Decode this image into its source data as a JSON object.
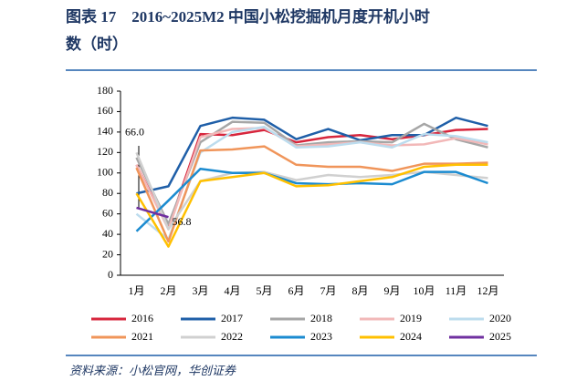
{
  "chart_data": {
    "type": "line",
    "title_lines": [
      "图表 17　2016~2025M2 中国小松挖掘机月度开机小时",
      "数（时）"
    ],
    "source": "资料来源：小松官网，华创证券",
    "categories": [
      "1月",
      "2月",
      "3月",
      "4月",
      "5月",
      "6月",
      "7月",
      "8月",
      "9月",
      "10月",
      "11月",
      "12月"
    ],
    "ylim": [
      0,
      180
    ],
    "yticks": [
      0,
      20,
      40,
      60,
      80,
      100,
      120,
      140,
      160,
      180
    ],
    "series": [
      {
        "name": "2016",
        "color": "#d7263d",
        "values": [
          108,
          47,
          138,
          137,
          142,
          130,
          135,
          137,
          133,
          137,
          142,
          143
        ]
      },
      {
        "name": "2017",
        "color": "#1f5fa8",
        "values": [
          80,
          87,
          146,
          154,
          152,
          133,
          143,
          132,
          137,
          137,
          154,
          146
        ]
      },
      {
        "name": "2018",
        "color": "#a6a6a6",
        "values": [
          115,
          50,
          130,
          150,
          149,
          127,
          130,
          131,
          130,
          148,
          133,
          125
        ]
      },
      {
        "name": "2019",
        "color": "#f2b8b8",
        "values": [
          108,
          45,
          135,
          143,
          144,
          126,
          128,
          130,
          127,
          128,
          134,
          128
        ]
      },
      {
        "name": "2020",
        "color": "#bcdcee",
        "values": [
          60,
          35,
          120,
          140,
          145,
          125,
          126,
          130,
          125,
          138,
          136,
          130
        ]
      },
      {
        "name": "2021",
        "color": "#f0955a",
        "values": [
          105,
          33,
          122,
          123,
          126,
          108,
          106,
          106,
          102,
          109,
          109,
          110
        ]
      },
      {
        "name": "2022",
        "color": "#d0d0d0",
        "values": [
          120,
          45,
          92,
          100,
          101,
          93,
          98,
          96,
          98,
          101,
          98,
          95
        ]
      },
      {
        "name": "2023",
        "color": "#1b8bd0",
        "values": [
          43,
          73,
          104,
          100,
          100,
          90,
          89,
          90,
          89,
          101,
          101,
          90
        ]
      },
      {
        "name": "2024",
        "color": "#ffc000",
        "values": [
          80,
          28,
          92,
          96,
          100,
          87,
          88,
          92,
          96,
          106,
          108,
          108
        ]
      },
      {
        "name": "2025",
        "color": "#7030a0",
        "values": [
          66.0,
          56.8,
          null,
          null,
          null,
          null,
          null,
          null,
          null,
          null,
          null,
          null
        ],
        "value_labels": [
          "66.0",
          "56.8",
          null,
          null,
          null,
          null,
          null,
          null,
          null,
          null,
          null,
          null
        ]
      }
    ]
  }
}
